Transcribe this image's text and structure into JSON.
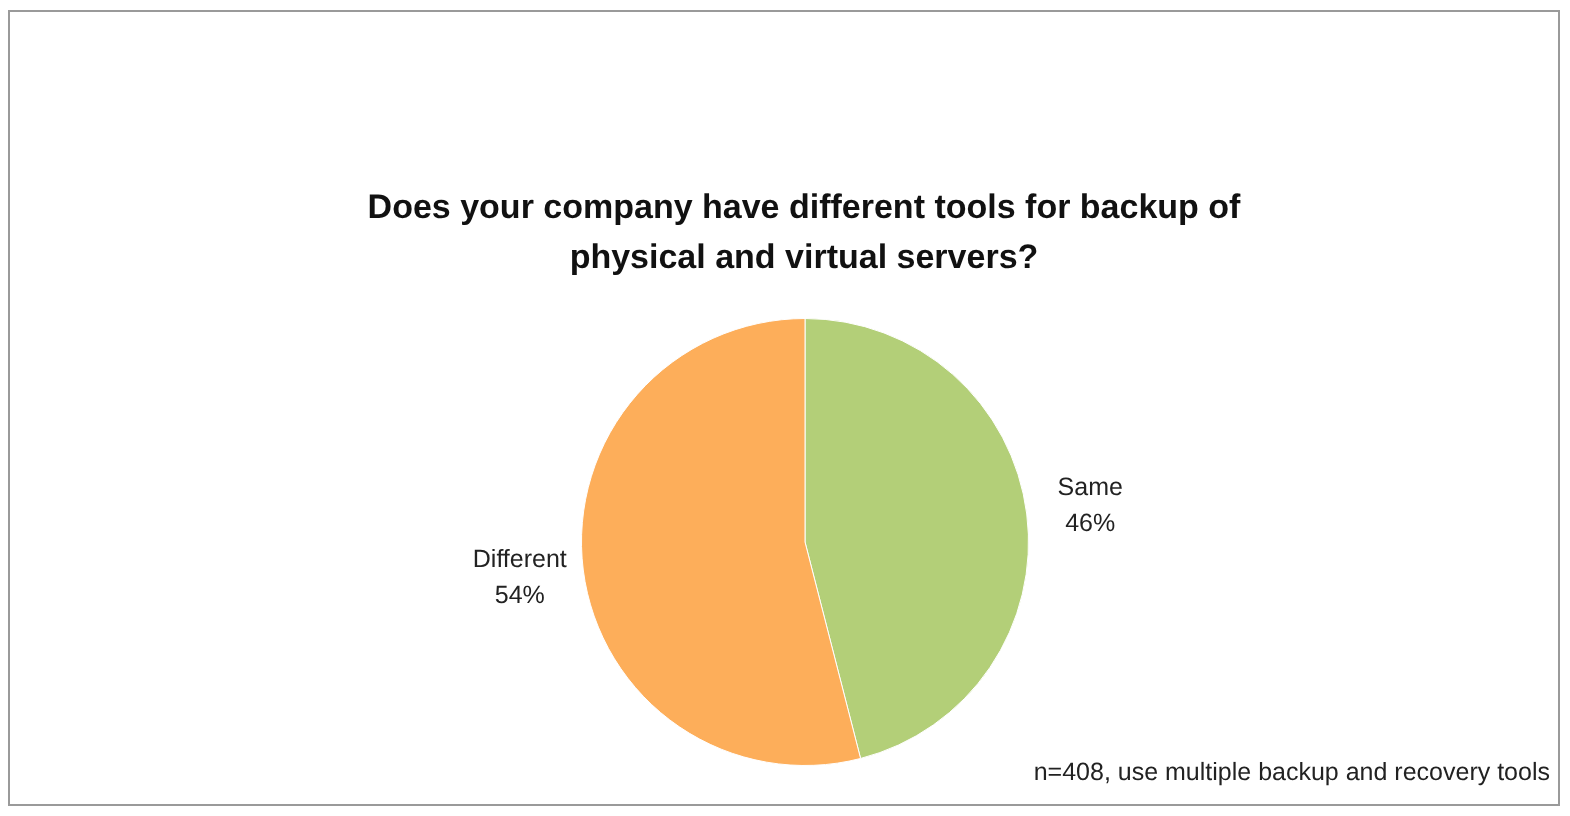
{
  "chart_data": {
    "type": "pie",
    "title": "Does your company have different tools for backup of physical and virtual servers?",
    "categories": [
      "Same",
      "Different"
    ],
    "values": [
      46,
      54
    ],
    "colors": [
      "#b3cf78",
      "#fdae5a"
    ],
    "value_labels": [
      "46%",
      "54%"
    ],
    "legend": false,
    "annotations": [
      "n=408, use multiple backup and recovery tools"
    ]
  }
}
